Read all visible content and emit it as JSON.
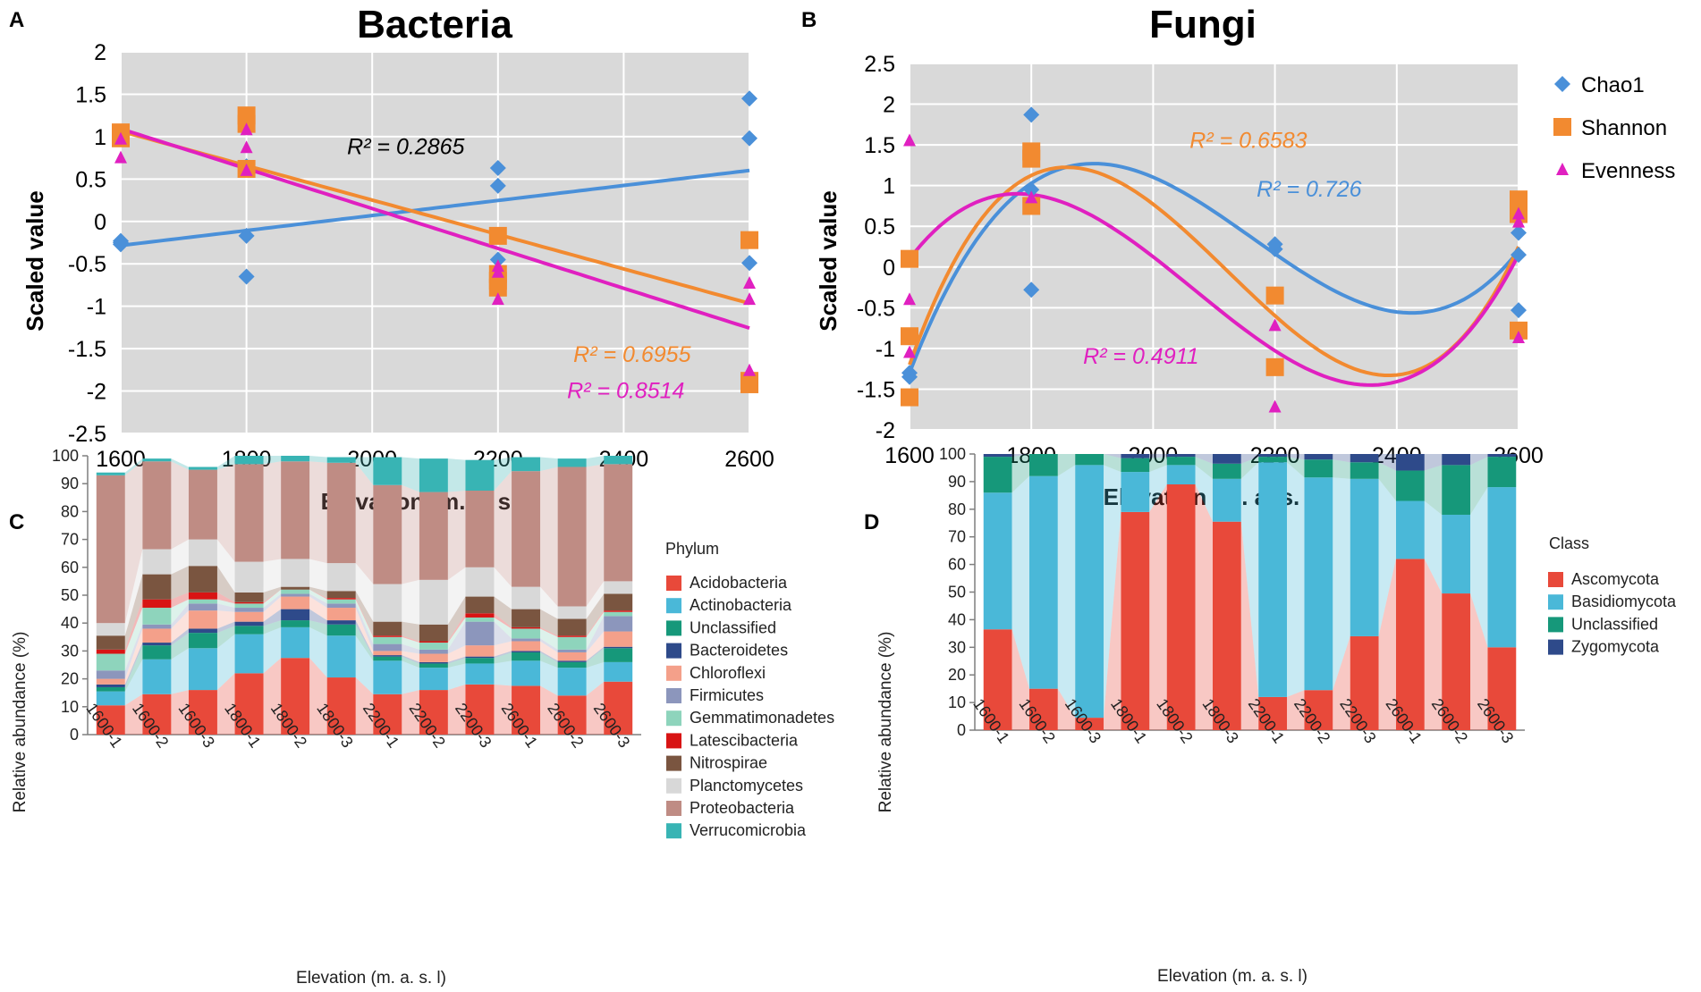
{
  "panels": {
    "A": {
      "letter": "A",
      "title": "Bacteria",
      "xlabel": "Elevation (m. a. s. l)",
      "ylabel": "Scaled value",
      "xlim": [
        1600,
        2600
      ],
      "ylim": [
        -2.5,
        2
      ],
      "xticks": [
        1600,
        1800,
        2000,
        2200,
        2400,
        2600
      ],
      "yticks": [
        -2.5,
        -2,
        -1.5,
        -1,
        -0.5,
        0,
        0.5,
        1,
        1.5,
        2
      ],
      "ytick_labels": [
        "-2.5",
        "-2",
        "-1.5",
        "-1",
        "-0.5",
        "0",
        "0.5",
        "1",
        "1.5",
        "2"
      ],
      "series": [
        {
          "name": "Chao1",
          "marker": "diamond",
          "color": "#4a90d9",
          "points": [
            [
              1600,
              -0.27
            ],
            [
              1600,
              -0.23
            ],
            [
              1600,
              -0.25
            ],
            [
              1800,
              -0.65
            ],
            [
              1800,
              -0.17
            ],
            [
              1800,
              0.65
            ],
            [
              2200,
              0.63
            ],
            [
              2200,
              0.42
            ],
            [
              2200,
              -0.45
            ],
            [
              2600,
              1.45
            ],
            [
              2600,
              0.98
            ],
            [
              2600,
              -0.49
            ]
          ],
          "trend": {
            "type": "linear",
            "coef": [
              -1.7,
              0.000885
            ],
            "range": [
              1600,
              2600
            ]
          },
          "r2": "R² = 0.2865",
          "r2_color": "#000000",
          "r2_pos": [
            1960,
            0.88
          ]
        },
        {
          "name": "Shannon",
          "marker": "square",
          "color": "#f28a30",
          "points": [
            [
              1600,
              1.05
            ],
            [
              1600,
              0.98
            ],
            [
              1800,
              1.25
            ],
            [
              1800,
              1.15
            ],
            [
              1800,
              0.62
            ],
            [
              2200,
              -0.17
            ],
            [
              2200,
              -0.62
            ],
            [
              2200,
              -0.7
            ],
            [
              2200,
              -0.78
            ],
            [
              2600,
              -0.22
            ],
            [
              2600,
              -1.88
            ],
            [
              2600,
              -1.92
            ]
          ],
          "trend": {
            "type": "linear",
            "coef": [
              4.312,
              -0.00203
            ],
            "range": [
              1600,
              2600
            ]
          },
          "r2": "R² = 0.6955",
          "r2_color": "#f28a30",
          "r2_pos": [
            2320,
            -1.57
          ]
        },
        {
          "name": "Evenness",
          "marker": "triangle",
          "color": "#e020c0",
          "points": [
            [
              1600,
              0.97
            ],
            [
              1600,
              0.75
            ],
            [
              1800,
              1.08
            ],
            [
              1800,
              0.87
            ],
            [
              1800,
              0.6
            ],
            [
              2200,
              -0.53
            ],
            [
              2200,
              -0.6
            ],
            [
              2200,
              -0.92
            ],
            [
              2600,
              -0.73
            ],
            [
              2600,
              -0.92
            ],
            [
              2600,
              -1.76
            ]
          ],
          "trend": {
            "type": "linear",
            "coef": [
              4.852,
              -0.00235
            ],
            "range": [
              1600,
              2600
            ]
          },
          "r2": "R² = 0.8514",
          "r2_color": "#e020c0",
          "r2_pos": [
            2310,
            -2.0
          ]
        }
      ]
    },
    "B": {
      "letter": "B",
      "title": "Fungi",
      "xlabel": "Elevation (m. a. s. l)",
      "ylabel": "Scaled value",
      "xlim": [
        1600,
        2600
      ],
      "ylim": [
        -2,
        2.5
      ],
      "xticks": [
        1600,
        1800,
        2000,
        2200,
        2400,
        2600
      ],
      "yticks": [
        -2,
        -1.5,
        -1,
        -0.5,
        0,
        0.5,
        1,
        1.5,
        2,
        2.5
      ],
      "ytick_labels": [
        "-2",
        "-1.5",
        "-1",
        "-0.5",
        "0",
        "0.5",
        "1",
        "1.5",
        "2",
        "2.5"
      ],
      "legend": [
        "Chao1",
        "Shannon",
        "Evenness"
      ],
      "series": [
        {
          "name": "Chao1",
          "marker": "diamond",
          "color": "#4a90d9",
          "points": [
            [
              1600,
              -1.35
            ],
            [
              1600,
              -1.3
            ],
            [
              1800,
              1.87
            ],
            [
              1800,
              0.95
            ],
            [
              1800,
              -0.28
            ],
            [
              2200,
              0.28
            ],
            [
              2200,
              0.22
            ],
            [
              2600,
              0.42
            ],
            [
              2600,
              0.15
            ],
            [
              2600,
              -0.53
            ]
          ],
          "trend": {
            "type": "cubic",
            "knots": [
              [
                1600,
                -1.3
              ],
              [
                1900,
                1.27
              ],
              [
                2450,
                -0.55
              ],
              [
                2600,
                0.2
              ]
            ],
            "range": [
              1600,
              2600
            ]
          },
          "r2": "R² = 0.726",
          "r2_color": "#4a90d9",
          "r2_pos": [
            2170,
            0.95
          ]
        },
        {
          "name": "Shannon",
          "marker": "square",
          "color": "#f28a30",
          "points": [
            [
              1600,
              0.1
            ],
            [
              1600,
              -0.85
            ],
            [
              1600,
              -1.6
            ],
            [
              1800,
              1.42
            ],
            [
              1800,
              1.33
            ],
            [
              1800,
              0.75
            ],
            [
              2200,
              -0.35
            ],
            [
              2200,
              -1.23
            ],
            [
              2600,
              0.83
            ],
            [
              2600,
              0.65
            ],
            [
              2600,
              -0.78
            ]
          ],
          "trend": {
            "type": "cubic",
            "knots": [
              [
                1600,
                -1.2
              ],
              [
                1845,
                1.22
              ],
              [
                2380,
                -1.33
              ],
              [
                2600,
                0.25
              ]
            ],
            "range": [
              1600,
              2600
            ]
          },
          "r2": "R² = 0.6583",
          "r2_color": "#f28a30",
          "r2_pos": [
            2060,
            1.55
          ]
        },
        {
          "name": "Evenness",
          "marker": "triangle",
          "color": "#e020c0",
          "points": [
            [
              1600,
              1.55
            ],
            [
              1600,
              -0.4
            ],
            [
              1600,
              -1.05
            ],
            [
              1800,
              0.85
            ],
            [
              2200,
              -0.72
            ],
            [
              2200,
              -1.72
            ],
            [
              2600,
              0.65
            ],
            [
              2600,
              0.55
            ],
            [
              2600,
              -0.87
            ]
          ],
          "trend": {
            "type": "cubic",
            "knots": [
              [
                1600,
                0.1
              ],
              [
                1775,
                0.9
              ],
              [
                2360,
                -1.45
              ],
              [
                2600,
                0.15
              ]
            ],
            "range": [
              1600,
              2600
            ]
          },
          "r2": "R² = 0.4911",
          "r2_color": "#e020c0",
          "r2_pos": [
            1885,
            -1.1
          ]
        }
      ]
    },
    "C": {
      "letter": "C",
      "type": "stacked_bar",
      "xlabel": "Elevation (m. a. s. l)",
      "ylabel": "Relative abundance (%)",
      "ylim": [
        0,
        100
      ],
      "yticks": [
        0,
        10,
        20,
        30,
        40,
        50,
        60,
        70,
        80,
        90,
        100
      ],
      "legend_title": "Phylum",
      "categories": [
        "1600-1",
        "1600-2",
        "1600-3",
        "1800-1",
        "1800-2",
        "1800-3",
        "2200-1",
        "2200-2",
        "2200-3",
        "2600-1",
        "2600-2",
        "2600-3"
      ],
      "series": [
        {
          "name": "Acidobacteria",
          "color": "#e8493a",
          "values": [
            10.5,
            14.5,
            16,
            22,
            27.5,
            20.5,
            14.5,
            16,
            18,
            17.5,
            14,
            19
          ]
        },
        {
          "name": "Actinobacteria",
          "color": "#4ab8d8",
          "values": [
            5,
            12.5,
            15,
            14,
            11,
            15,
            12,
            8,
            7.5,
            9,
            10,
            7
          ]
        },
        {
          "name": "Unclassified",
          "color": "#16987a",
          "values": [
            1.5,
            5,
            5.5,
            3,
            2.5,
            4,
            1.5,
            1.5,
            2,
            3,
            2,
            5
          ]
        },
        {
          "name": "Bacteroidetes",
          "color": "#2e4a8a",
          "values": [
            1,
            1,
            1.5,
            1.5,
            4,
            1.5,
            0.5,
            0.5,
            0.5,
            0.5,
            0.5,
            0.5
          ]
        },
        {
          "name": "Chloroflexi",
          "color": "#f4a08a",
          "values": [
            2,
            5,
            6.5,
            3.5,
            4.5,
            4.5,
            1.5,
            3,
            4,
            3.5,
            3,
            5.5
          ]
        },
        {
          "name": "Firmicutes",
          "color": "#8c96bc",
          "values": [
            3,
            1.5,
            2.5,
            1.5,
            1,
            1.5,
            2.5,
            1.5,
            8.5,
            1,
            1,
            5.5
          ]
        },
        {
          "name": "Gemmatimonadetes",
          "color": "#8ed4bc",
          "values": [
            6,
            6,
            1.5,
            1.5,
            1.5,
            1.5,
            2.5,
            2.5,
            1.5,
            3.5,
            4.5,
            1.5
          ]
        },
        {
          "name": "Latescibacteria",
          "color": "#d81414",
          "values": [
            1.5,
            3,
            2.5,
            0.5,
            0,
            0.5,
            0.5,
            0.5,
            1.5,
            0.5,
            0.5,
            0.5
          ]
        },
        {
          "name": "Nitrospirae",
          "color": "#7a5540",
          "values": [
            5,
            9,
            9.5,
            3.5,
            1,
            2.5,
            5,
            6,
            6,
            6.5,
            6,
            6
          ]
        },
        {
          "name": "Planctomycetes",
          "color": "#d8d8d8",
          "values": [
            4.5,
            9,
            9.5,
            11,
            10,
            10,
            13.5,
            16,
            10.5,
            8,
            4.5,
            4.5
          ]
        },
        {
          "name": "Proteobacteria",
          "color": "#bf8c84",
          "values": [
            53,
            31.5,
            25,
            35,
            35,
            36,
            35.5,
            31.5,
            27.5,
            41.5,
            50,
            42
          ]
        },
        {
          "name": "Verrucomicrobia",
          "color": "#38b4b4",
          "values": [
            1,
            1,
            1,
            3,
            2,
            2,
            10,
            12,
            11,
            5,
            3,
            3
          ]
        }
      ]
    },
    "D": {
      "letter": "D",
      "type": "stacked_bar",
      "xlabel": "Elevation (m. a. s. l)",
      "ylabel": "Relative abundance (%)",
      "ylim": [
        0,
        100
      ],
      "yticks": [
        0,
        10,
        20,
        30,
        40,
        50,
        60,
        70,
        80,
        90,
        100
      ],
      "legend_title": "Class",
      "categories": [
        "1600-1",
        "1600-2",
        "1600-3",
        "1800-1",
        "1800-2",
        "1800-3",
        "2200-1",
        "2200-2",
        "2200-3",
        "2600-1",
        "2600-2",
        "2600-3"
      ],
      "series": [
        {
          "name": "Ascomycota",
          "color": "#e8493a",
          "values": [
            36.5,
            15,
            4.5,
            79,
            89,
            75.5,
            12,
            14.5,
            34,
            62,
            49.5,
            30
          ]
        },
        {
          "name": "Basidiomycota",
          "color": "#4ab8d8",
          "values": [
            49.5,
            77,
            91.5,
            14.5,
            7,
            15.5,
            85,
            77,
            57,
            21,
            28.5,
            58
          ]
        },
        {
          "name": "Unclassified",
          "color": "#16987a",
          "values": [
            13,
            8,
            4,
            5,
            3,
            5.5,
            2,
            6.5,
            6,
            11,
            18,
            11
          ]
        },
        {
          "name": "Zygomycota",
          "color": "#2e4a8a",
          "values": [
            1,
            0,
            0,
            1.5,
            1,
            3.5,
            1,
            2,
            3,
            6,
            4,
            1
          ]
        }
      ]
    }
  }
}
